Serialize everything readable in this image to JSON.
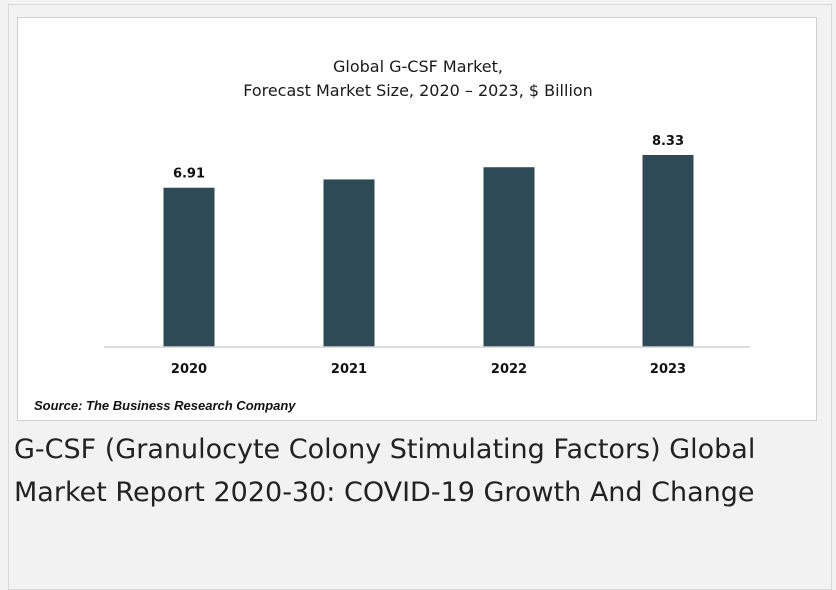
{
  "chart_data": {
    "type": "bar",
    "title_line1": "Global G-CSF Market,",
    "title_line2": "Forecast Market Size, 2020 – 2023, $ Billion",
    "categories": [
      "2020",
      "2021",
      "2022",
      "2023"
    ],
    "values": [
      6.91,
      7.27,
      7.8,
      8.33
    ],
    "data_labels": [
      "6.91",
      "",
      "",
      "8.33"
    ],
    "xlabel": "",
    "ylabel": "",
    "ylim": [
      0,
      8.33
    ],
    "grid": false,
    "bar_color": "#2e4a57"
  },
  "source": "Source: The Business Research Company",
  "headline": "G-CSF (Granulocyte Colony Stimulating Factors) Global Market Report 2020-30: COVID-19 Growth And Change"
}
